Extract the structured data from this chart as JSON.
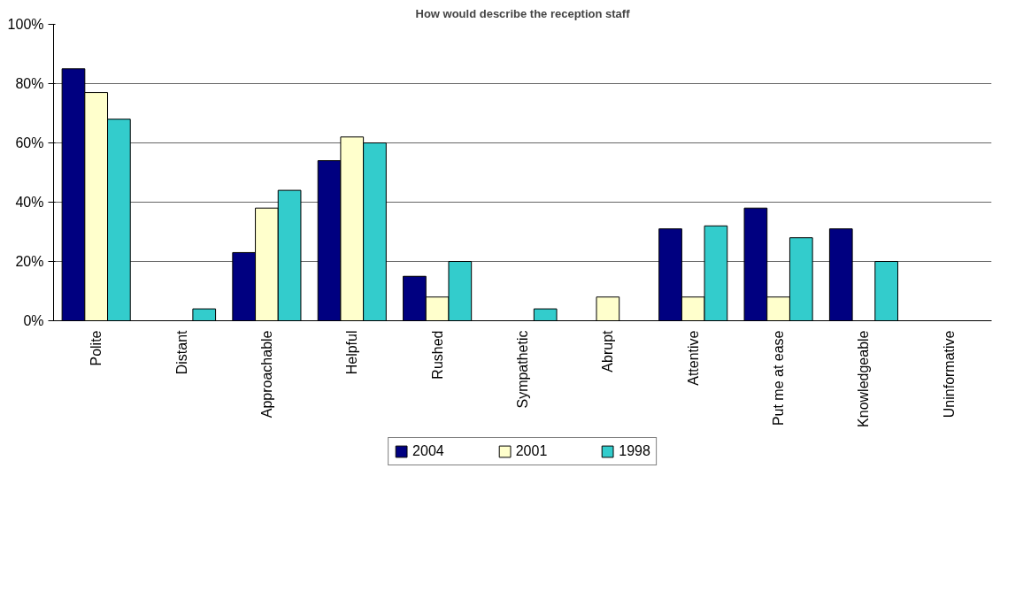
{
  "chart_data": {
    "type": "bar",
    "title": "How would describe the reception staff",
    "categories": [
      "Polite",
      "Distant",
      "Approachable",
      "Helpful",
      "Rushed",
      "Sympathetic",
      "Abrupt",
      "Attentive",
      "Put me at ease",
      "Knowledgeable",
      "Uninformative"
    ],
    "series": [
      {
        "name": "2004",
        "color": "#000080",
        "values": [
          85,
          0,
          23,
          54,
          15,
          0,
          0,
          31,
          38,
          31,
          0
        ]
      },
      {
        "name": "2001",
        "color": "#ffffcc",
        "values": [
          77,
          0,
          38,
          62,
          8,
          0,
          8,
          8,
          8,
          0,
          0
        ]
      },
      {
        "name": "1998",
        "color": "#33cccc",
        "values": [
          68,
          4,
          44,
          60,
          20,
          4,
          0,
          32,
          28,
          20,
          0
        ]
      }
    ],
    "ylim": [
      0,
      100
    ],
    "yticks": [
      {
        "value": 0,
        "label": "0%"
      },
      {
        "value": 20,
        "label": "20%"
      },
      {
        "value": 40,
        "label": "40%"
      },
      {
        "value": 60,
        "label": "60%"
      },
      {
        "value": 80,
        "label": "80%"
      },
      {
        "value": 100,
        "label": "100%"
      }
    ],
    "grid": "y",
    "legend": "bottom"
  }
}
